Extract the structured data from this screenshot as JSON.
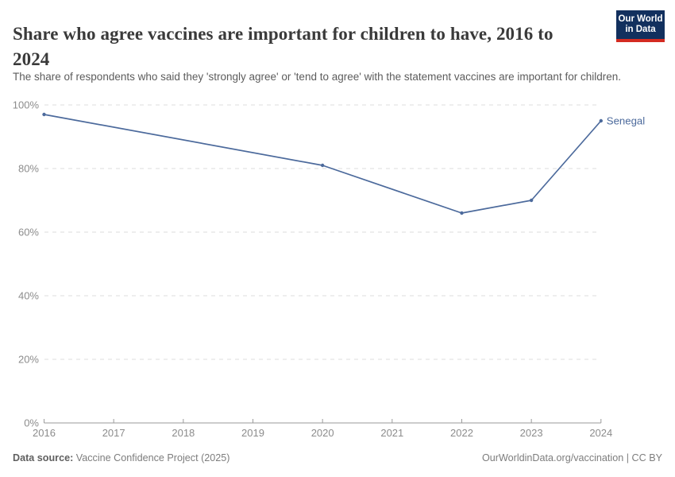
{
  "header": {
    "title": "Share who agree vaccines are important for children to have, 2016 to 2024",
    "subtitle": "The share of respondents who said they 'strongly agree' or 'tend to agree' with the statement vaccines are important for children.",
    "logo": {
      "line1": "Our World",
      "line2": "in Data",
      "bg_color": "#12305e",
      "accent_color": "#d42b21"
    }
  },
  "footer": {
    "datasource_label": "Data source:",
    "datasource_value": " Vaccine Confidence Project (2025)",
    "right_text": "OurWorldinData.org/vaccination | CC BY"
  },
  "chart_data": {
    "type": "line",
    "title": "Share who agree vaccines are important for children to have, 2016 to 2024",
    "xlabel": "",
    "ylabel": "",
    "x_ticks": [
      2016,
      2017,
      2018,
      2019,
      2020,
      2021,
      2022,
      2023,
      2024
    ],
    "xlim": [
      2016,
      2024
    ],
    "y_ticks": [
      0,
      20,
      40,
      60,
      80,
      100
    ],
    "ylim": [
      0,
      100
    ],
    "y_tick_suffix": "%",
    "grid": "horizontal-dashed",
    "legend_position": "end-of-line-label",
    "colors": {
      "grid": "#dcdcdc",
      "axis": "#9a9a9a",
      "tick_label": "#8c8c8c"
    },
    "series": [
      {
        "name": "Senegal",
        "color": "#4C6A9C",
        "end_label": "Senegal",
        "points": [
          {
            "x": 2016,
            "y": 97
          },
          {
            "x": 2020,
            "y": 81
          },
          {
            "x": 2022,
            "y": 66
          },
          {
            "x": 2023,
            "y": 70
          },
          {
            "x": 2024,
            "y": 95
          }
        ]
      }
    ]
  }
}
